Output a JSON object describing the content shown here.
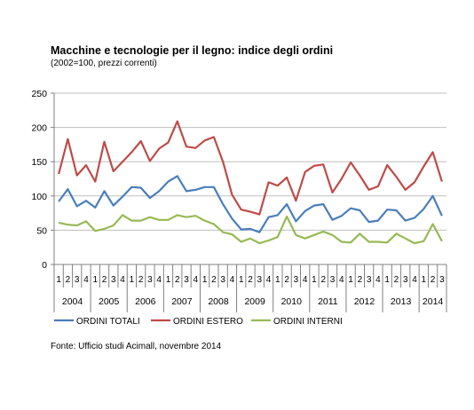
{
  "chart_data": {
    "type": "line",
    "title": "Macchine e tecnologie per il legno: indice degli ordini",
    "subtitle": "(2002=100, prezzi correnti)",
    "ylim": [
      0,
      250
    ],
    "yticks": [
      0,
      50,
      100,
      150,
      200,
      250
    ],
    "grid": "horizontal",
    "legend": "bottom",
    "years": [
      {
        "label": "2004",
        "quarters": [
          "1",
          "2",
          "3",
          "4"
        ]
      },
      {
        "label": "2005",
        "quarters": [
          "1",
          "2",
          "3",
          "4"
        ]
      },
      {
        "label": "2006",
        "quarters": [
          "1",
          "2",
          "3",
          "4"
        ]
      },
      {
        "label": "2007",
        "quarters": [
          "1",
          "2",
          "3",
          "4"
        ]
      },
      {
        "label": "2008",
        "quarters": [
          "1",
          "2",
          "3",
          "4"
        ]
      },
      {
        "label": "2009",
        "quarters": [
          "1",
          "2",
          "3",
          "4"
        ]
      },
      {
        "label": "2010",
        "quarters": [
          "1",
          "2",
          "3",
          "4"
        ]
      },
      {
        "label": "2011",
        "quarters": [
          "1",
          "2",
          "3",
          "4"
        ]
      },
      {
        "label": "2012",
        "quarters": [
          "1",
          "2",
          "3",
          "4"
        ]
      },
      {
        "label": "2013",
        "quarters": [
          "1",
          "2",
          "3",
          "4"
        ]
      },
      {
        "label": "2014",
        "quarters": [
          "1",
          "2",
          "3"
        ]
      }
    ],
    "series": [
      {
        "name": "ORDINI TOTALI",
        "color": "#4a7ebb",
        "values": [
          92,
          110,
          85,
          93,
          83,
          107,
          86,
          99,
          113,
          112,
          97,
          107,
          121,
          129,
          107,
          109,
          113,
          113,
          88,
          67,
          51,
          52,
          47,
          69,
          72,
          88,
          63,
          78,
          86,
          88,
          65,
          71,
          82,
          79,
          62,
          64,
          80,
          79,
          64,
          68,
          81,
          100,
          71
        ]
      },
      {
        "name": "ORDINI ESTERO",
        "color": "#be4b48",
        "values": [
          132,
          183,
          130,
          145,
          121,
          179,
          136,
          150,
          164,
          180,
          151,
          169,
          178,
          209,
          172,
          170,
          181,
          186,
          150,
          102,
          80,
          77,
          73,
          120,
          115,
          127,
          93,
          135,
          144,
          146,
          105,
          125,
          149,
          130,
          109,
          114,
          145,
          128,
          109,
          120,
          143,
          164,
          121
        ]
      },
      {
        "name": "ORDINI INTERNI",
        "color": "#98b954",
        "values": [
          61,
          58,
          57,
          63,
          49,
          52,
          57,
          72,
          64,
          64,
          69,
          65,
          65,
          72,
          69,
          71,
          64,
          59,
          47,
          44,
          33,
          38,
          31,
          35,
          40,
          70,
          43,
          38,
          43,
          48,
          43,
          33,
          32,
          45,
          33,
          33,
          32,
          45,
          38,
          31,
          34,
          59,
          34
        ]
      }
    ]
  },
  "source": "Fonte: Ufficio studi Acimall, novembre 2014"
}
